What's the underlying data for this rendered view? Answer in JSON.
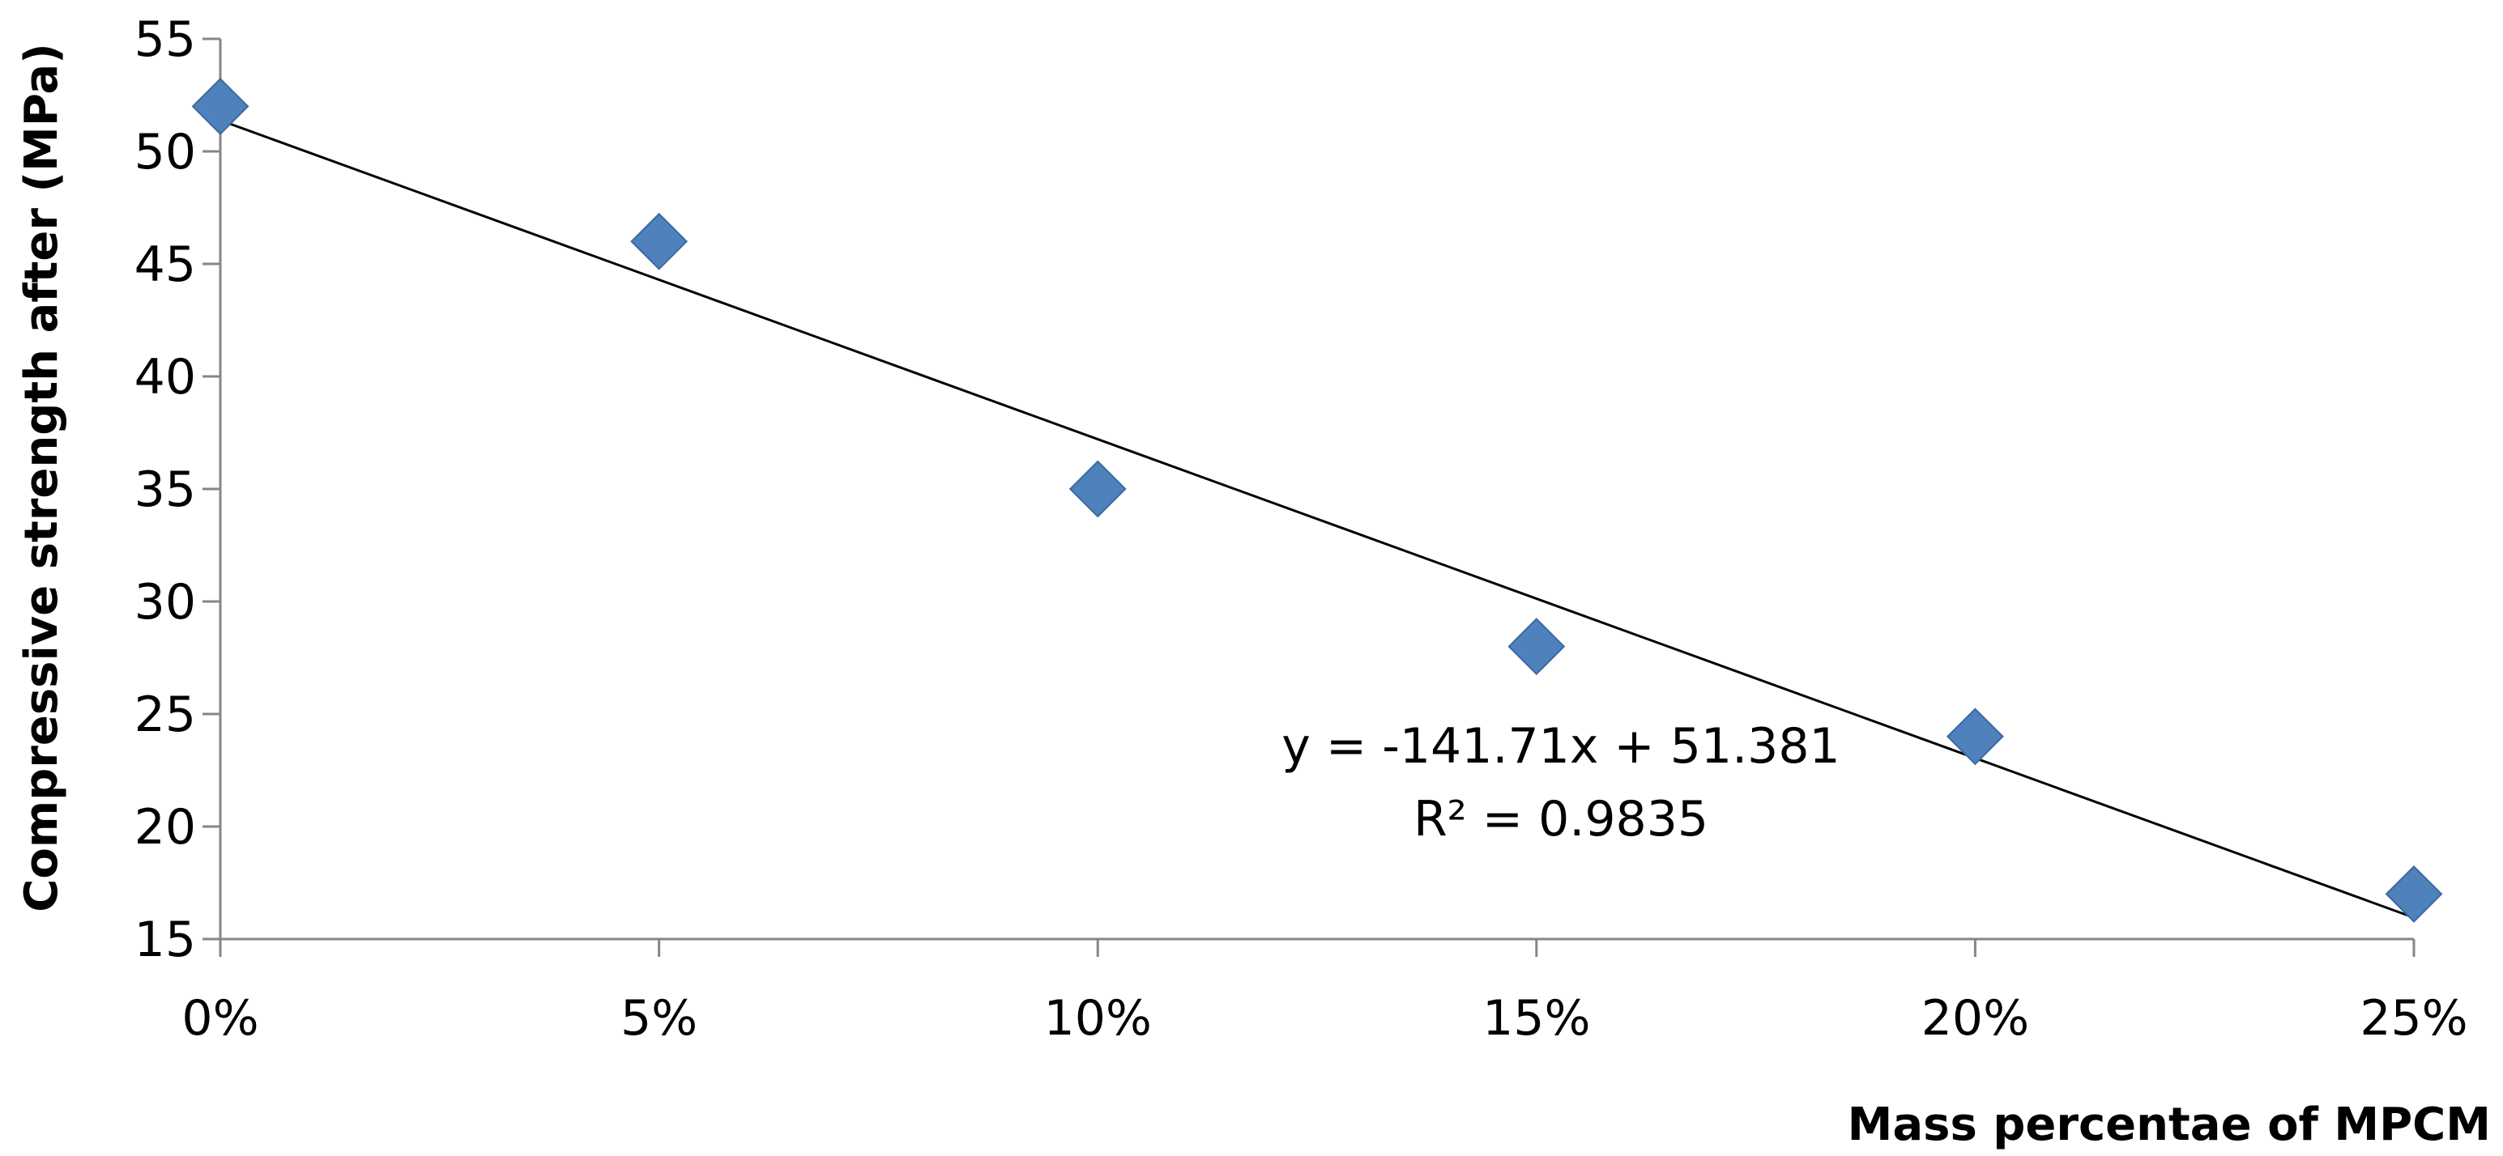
{
  "chart_data": {
    "type": "scatter",
    "title": "",
    "xlabel": "Mass percentae of MPCM",
    "ylabel": "Compressive strength after (MPa)",
    "x_tick_labels": [
      "0%",
      "5%",
      "10%",
      "15%",
      "20%",
      "25%"
    ],
    "x_ticks": [
      0,
      0.05,
      0.1,
      0.15,
      0.2,
      0.25
    ],
    "y_ticks": [
      15,
      20,
      25,
      30,
      35,
      40,
      45,
      50,
      55
    ],
    "xlim": [
      0,
      0.25
    ],
    "ylim": [
      15,
      55
    ],
    "grid": false,
    "legend": "none",
    "series": [
      {
        "x": [
          0,
          0.05,
          0.1,
          0.15,
          0.2,
          0.25
        ],
        "y": [
          52,
          46,
          35,
          28,
          24,
          17
        ],
        "marker": "diamond",
        "color": "#4F81BD"
      }
    ],
    "trendline": {
      "type": "linear",
      "slope": -141.71,
      "intercept": 51.381,
      "color": "#000000"
    },
    "annotations": [
      "y = -141.71x + 51.381",
      "R² = 0.9835"
    ]
  }
}
